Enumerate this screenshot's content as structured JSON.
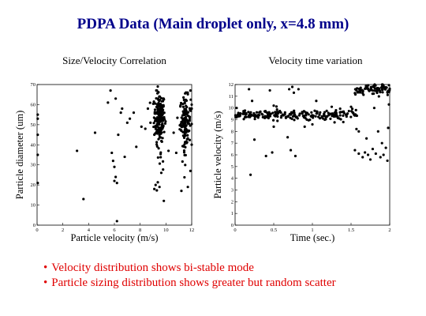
{
  "slide": {
    "title": "PDPA Data (Main droplet only, x=4.8 mm)",
    "title_color": "#00008b",
    "bullet_color": "#e00000",
    "bullets": [
      "Velocity distribution shows bi-stable mode",
      "Particle sizing distribution shows greater but random scatter"
    ]
  },
  "chart_data": [
    {
      "type": "scatter",
      "title": "Size/Velocity Correlation",
      "xlabel": "Particle velocity (m/s)",
      "ylabel": "Particle diameter (um)",
      "xlim": [
        0,
        12
      ],
      "ylim": [
        0,
        70
      ],
      "xticks": [
        0,
        2,
        4,
        6,
        8,
        10,
        12
      ],
      "yticks": [
        0,
        10,
        20,
        30,
        40,
        50,
        60,
        70
      ],
      "grid": false,
      "point_color": "#000000",
      "clusters": [
        {
          "center": [
            9.5,
            54
          ],
          "spread": [
            0.35,
            6
          ],
          "count": 190
        },
        {
          "center": [
            11.5,
            52
          ],
          "spread": [
            0.35,
            6
          ],
          "count": 120
        },
        {
          "center": [
            9.5,
            30
          ],
          "spread": [
            0.25,
            7
          ],
          "count": 14
        },
        {
          "center": [
            11.5,
            30
          ],
          "spread": [
            0.25,
            7
          ],
          "count": 8
        }
      ],
      "points": [
        [
          0.05,
          55
        ],
        [
          0.05,
          53
        ],
        [
          0.05,
          45
        ],
        [
          0.05,
          35
        ],
        [
          0.05,
          21
        ],
        [
          3.1,
          37
        ],
        [
          3.6,
          13
        ],
        [
          4.5,
          46
        ],
        [
          5.5,
          61
        ],
        [
          5.7,
          67
        ],
        [
          5.8,
          36
        ],
        [
          5.9,
          32
        ],
        [
          6.0,
          29
        ],
        [
          6.0,
          22
        ],
        [
          6.1,
          24
        ],
        [
          6.1,
          63
        ],
        [
          6.2,
          21
        ],
        [
          6.2,
          2
        ],
        [
          6.3,
          45
        ],
        [
          6.5,
          56
        ],
        [
          6.6,
          58
        ],
        [
          6.8,
          34
        ],
        [
          7.0,
          51
        ],
        [
          7.2,
          53
        ],
        [
          7.5,
          56
        ],
        [
          7.7,
          39
        ],
        [
          8.1,
          49
        ],
        [
          8.4,
          48
        ],
        [
          8.6,
          58
        ],
        [
          8.8,
          51
        ],
        [
          9.1,
          18
        ],
        [
          9.2,
          20
        ],
        [
          9.3,
          67
        ],
        [
          9.5,
          19
        ],
        [
          10.2,
          37
        ],
        [
          10.6,
          46
        ],
        [
          10.8,
          36
        ],
        [
          11.6,
          62
        ],
        [
          11.7,
          19
        ],
        [
          11.8,
          47
        ],
        [
          11.9,
          27
        ],
        [
          12.0,
          58
        ],
        [
          12.0,
          60
        ],
        [
          11.9,
          67
        ]
      ]
    },
    {
      "type": "scatter",
      "title": "Velocity time variation",
      "xlabel": "Time (sec.)",
      "ylabel": "Particle velocity (m/s)",
      "xlim": [
        0,
        2
      ],
      "ylim": [
        0,
        12
      ],
      "xticks": [
        0,
        0.5,
        1,
        1.5,
        2
      ],
      "yticks": [
        0,
        1,
        2,
        3,
        4,
        5,
        6,
        7,
        8,
        9,
        10,
        11,
        12
      ],
      "grid": false,
      "point_color": "#000000",
      "bands": [
        {
          "x": [
            0.0,
            1.58
          ],
          "y_center": 9.4,
          "y_spread": 0.22,
          "count": 230
        },
        {
          "x": [
            1.55,
            2.0
          ],
          "y_center": 11.5,
          "y_spread": 0.22,
          "count": 90
        }
      ],
      "points": [
        [
          0.02,
          10.0
        ],
        [
          0.18,
          11.6
        ],
        [
          0.2,
          4.3
        ],
        [
          0.22,
          10.6
        ],
        [
          0.25,
          7.3
        ],
        [
          0.4,
          5.9
        ],
        [
          0.45,
          11.5
        ],
        [
          0.48,
          6.2
        ],
        [
          0.5,
          10.2
        ],
        [
          0.5,
          8.4
        ],
        [
          0.68,
          7.5
        ],
        [
          0.7,
          11.6
        ],
        [
          0.72,
          6.4
        ],
        [
          0.74,
          11.8
        ],
        [
          0.76,
          11.3
        ],
        [
          0.78,
          5.9
        ],
        [
          0.82,
          11.6
        ],
        [
          0.9,
          8.4
        ],
        [
          1.0,
          8.6
        ],
        [
          1.05,
          10.6
        ],
        [
          1.25,
          10.1
        ],
        [
          1.4,
          8.8
        ],
        [
          1.5,
          10.1
        ],
        [
          1.55,
          6.4
        ],
        [
          1.57,
          8.2
        ],
        [
          1.6,
          8.0
        ],
        [
          1.6,
          6.1
        ],
        [
          1.65,
          5.8
        ],
        [
          1.68,
          6.2
        ],
        [
          1.7,
          7.4
        ],
        [
          1.72,
          6.0
        ],
        [
          1.75,
          5.6
        ],
        [
          1.78,
          6.5
        ],
        [
          1.8,
          10.0
        ],
        [
          1.82,
          6.1
        ],
        [
          1.85,
          8.0
        ],
        [
          1.88,
          5.8
        ],
        [
          1.9,
          7.0
        ],
        [
          1.92,
          6.0
        ],
        [
          1.95,
          6.6
        ],
        [
          1.97,
          5.5
        ],
        [
          1.98,
          8.3
        ],
        [
          1.99,
          10.3
        ]
      ]
    }
  ]
}
